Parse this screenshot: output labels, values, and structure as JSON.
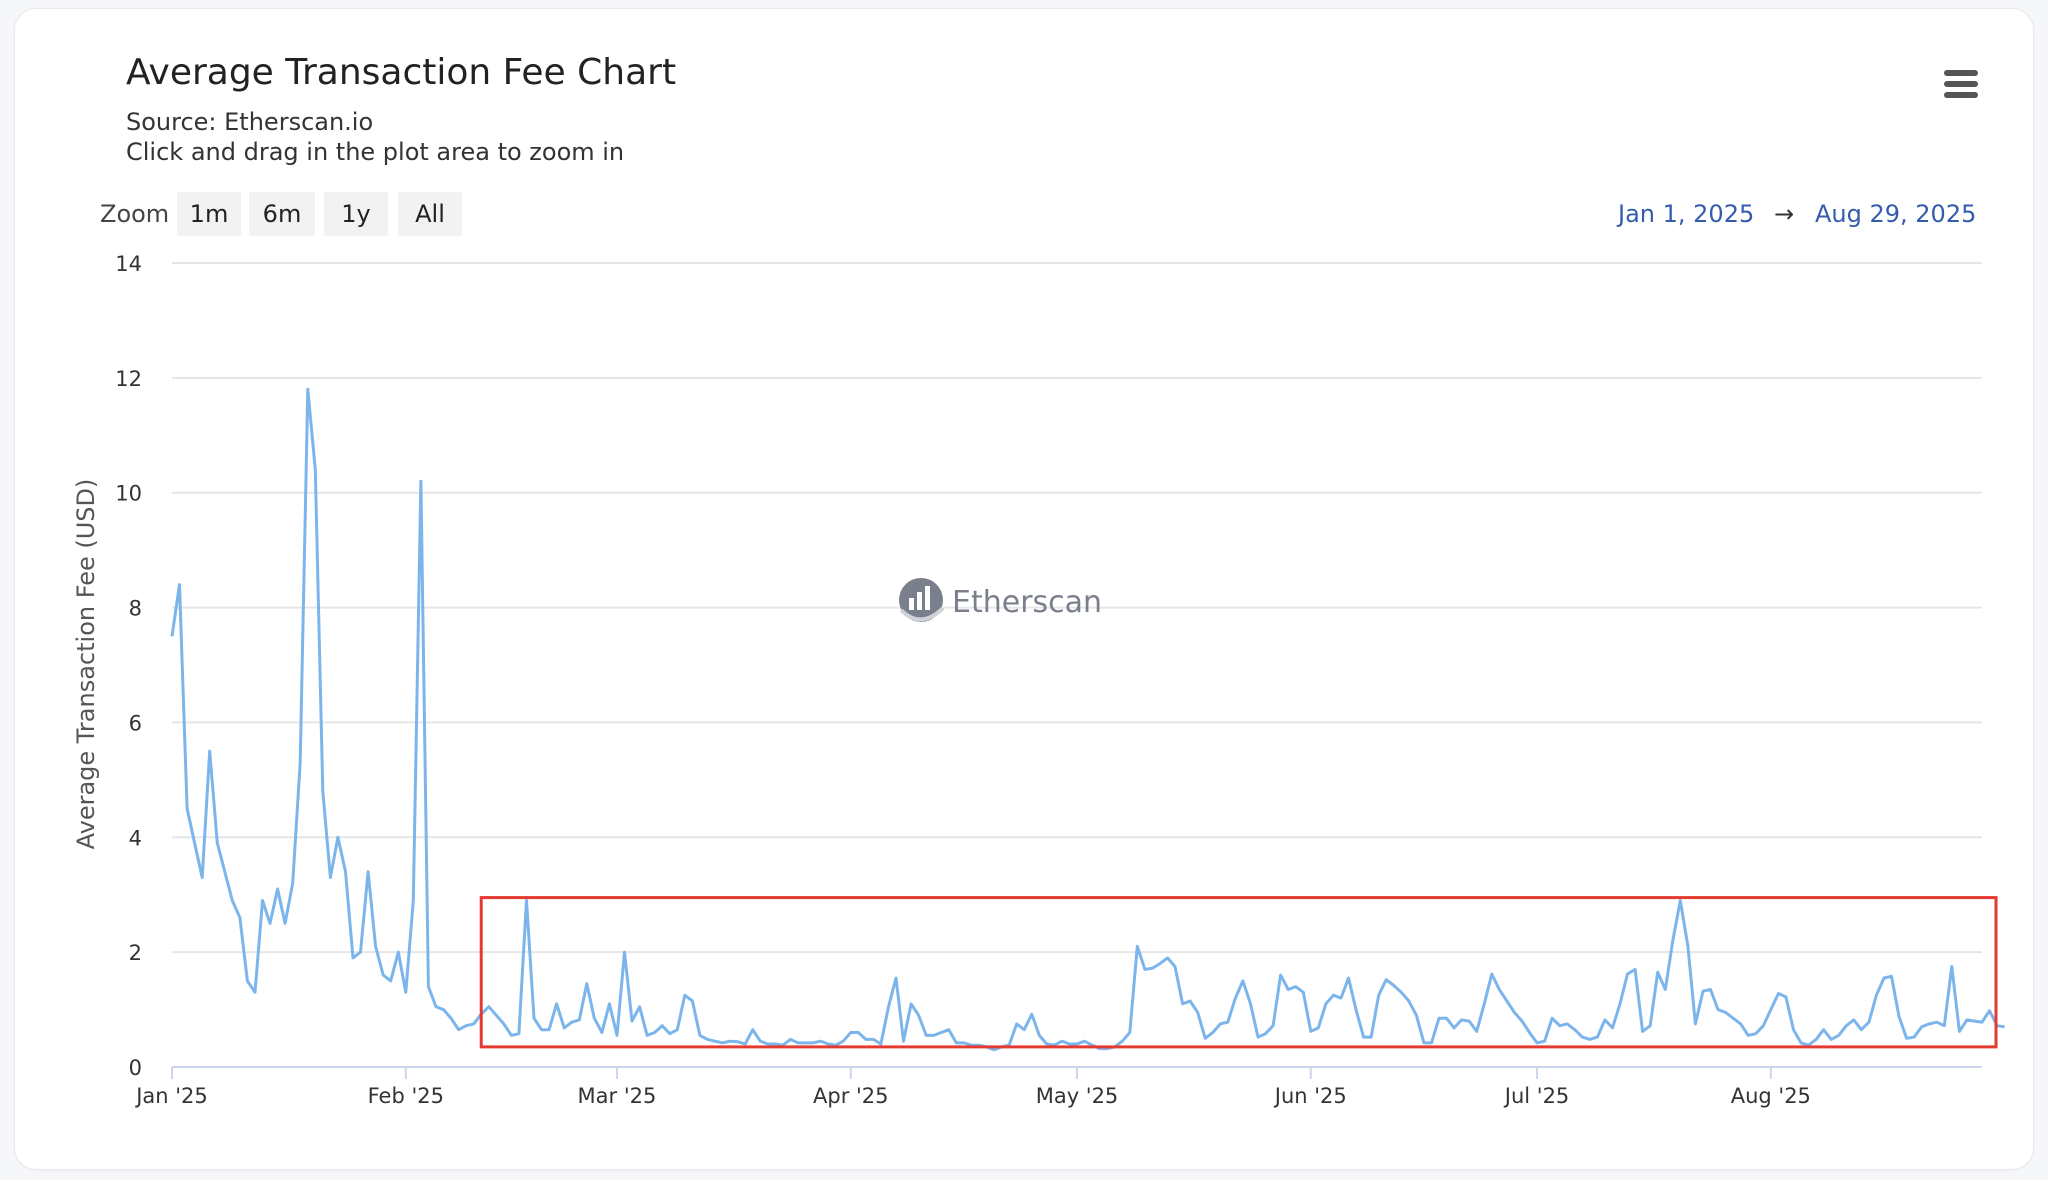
{
  "header": {
    "title": "Average Transaction Fee Chart",
    "source": "Source: Etherscan.io",
    "hint": "Click and drag in the plot area to zoom in"
  },
  "toolbar": {
    "zoom_label": "Zoom",
    "zoom_buttons": [
      "1m",
      "6m",
      "1y",
      "All"
    ],
    "range_from": "Jan 1, 2025",
    "range_arrow": "→",
    "range_to": "Aug 29, 2025",
    "menu_icon": "hamburger-menu-icon"
  },
  "watermark": {
    "text": "Etherscan",
    "icon": "etherscan-logo-icon"
  },
  "colors": {
    "line": "#7cb5ec",
    "highlight_box": "#e53a2f",
    "range_text": "#335cad",
    "grid": "#e6e6e6"
  },
  "chart_data": {
    "type": "line",
    "title": "Average Transaction Fee Chart",
    "subtitle": "Source: Etherscan.io",
    "xlabel": "",
    "ylabel": "Average Transaction Fee (USD)",
    "ylim": [
      0,
      14
    ],
    "yticks": [
      "0",
      "2",
      "4",
      "6",
      "8",
      "10",
      "12",
      "14"
    ],
    "xlim": [
      "2025-01-01",
      "2025-08-29"
    ],
    "xticks": [
      {
        "date": "2025-01-01",
        "label": "Jan '25"
      },
      {
        "date": "2025-02-01",
        "label": "Feb '25"
      },
      {
        "date": "2025-03-01",
        "label": "Mar '25"
      },
      {
        "date": "2025-04-01",
        "label": "Apr '25"
      },
      {
        "date": "2025-05-01",
        "label": "May '25"
      },
      {
        "date": "2025-06-01",
        "label": "Jun '25"
      },
      {
        "date": "2025-07-01",
        "label": "Jul '25"
      },
      {
        "date": "2025-08-01",
        "label": "Aug '25"
      }
    ],
    "grid": true,
    "legend": false,
    "highlight_box": {
      "x_from": "2025-02-11",
      "x_to": "2025-08-31",
      "y_from": 0.35,
      "y_to": 2.95
    },
    "series": [
      {
        "start_date": "2025-01-01",
        "values": [
          7.5,
          8.4,
          4.5,
          3.9,
          3.3,
          5.5,
          3.9,
          3.4,
          2.9,
          2.6,
          1.5,
          1.3,
          2.9,
          2.5,
          3.1,
          2.5,
          3.2,
          5.3,
          11.8,
          10.4,
          4.8,
          3.3,
          4.0,
          3.4,
          1.9,
          2.0,
          3.4,
          2.1,
          1.6,
          1.5,
          2.0,
          1.3,
          2.9,
          10.2,
          1.4,
          1.05,
          1.0,
          0.85,
          0.65,
          0.72,
          0.75,
          0.92,
          1.05,
          0.9,
          0.75,
          0.55,
          0.58,
          2.9,
          0.85,
          0.65,
          0.65,
          1.1,
          0.68,
          0.78,
          0.82,
          1.45,
          0.85,
          0.6,
          1.1,
          0.55,
          2.0,
          0.8,
          1.05,
          0.55,
          0.6,
          0.72,
          0.58,
          0.65,
          1.25,
          1.15,
          0.55,
          0.48,
          0.45,
          0.42,
          0.45,
          0.44,
          0.4,
          0.65,
          0.45,
          0.4,
          0.4,
          0.38,
          0.48,
          0.42,
          0.42,
          0.42,
          0.45,
          0.4,
          0.38,
          0.45,
          0.6,
          0.6,
          0.48,
          0.48,
          0.4,
          1.05,
          1.55,
          0.45,
          1.1,
          0.9,
          0.55,
          0.55,
          0.6,
          0.65,
          0.42,
          0.42,
          0.38,
          0.38,
          0.35,
          0.3,
          0.35,
          0.38,
          0.75,
          0.65,
          0.92,
          0.55,
          0.4,
          0.38,
          0.45,
          0.4,
          0.4,
          0.45,
          0.38,
          0.32,
          0.32,
          0.35,
          0.45,
          0.6,
          2.1,
          1.7,
          1.72,
          1.8,
          1.9,
          1.75,
          1.1,
          1.15,
          0.95,
          0.5,
          0.6,
          0.75,
          0.78,
          1.2,
          1.5,
          1.1,
          0.52,
          0.58,
          0.72,
          1.6,
          1.35,
          1.4,
          1.3,
          0.62,
          0.68,
          1.1,
          1.25,
          1.2,
          1.55,
          1.0,
          0.52,
          0.52,
          1.25,
          1.52,
          1.42,
          1.3,
          1.15,
          0.9,
          0.42,
          0.42,
          0.85,
          0.85,
          0.68,
          0.82,
          0.8,
          0.62,
          1.1,
          1.62,
          1.35,
          1.15,
          0.95,
          0.8,
          0.6,
          0.42,
          0.45,
          0.85,
          0.72,
          0.75,
          0.65,
          0.52,
          0.48,
          0.52,
          0.82,
          0.68,
          1.1,
          1.62,
          1.7,
          0.62,
          0.72,
          1.65,
          1.35,
          2.2,
          2.9,
          2.1,
          0.75,
          1.32,
          1.35,
          1.0,
          0.95,
          0.85,
          0.75,
          0.55,
          0.58,
          0.72,
          1.0,
          1.28,
          1.22,
          0.65,
          0.42,
          0.38,
          0.48,
          0.65,
          0.48,
          0.55,
          0.72,
          0.82,
          0.65,
          0.78,
          1.25,
          1.55,
          1.58,
          0.88,
          0.5,
          0.52,
          0.7,
          0.75,
          0.78,
          0.72,
          1.75,
          0.62,
          0.82,
          0.8,
          0.78,
          0.98,
          0.72,
          0.7
        ]
      }
    ]
  }
}
